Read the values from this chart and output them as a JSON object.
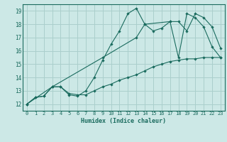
{
  "title": "",
  "xlabel": "Humidex (Indice chaleur)",
  "xlim": [
    -0.5,
    23.5
  ],
  "ylim": [
    11.5,
    19.5
  ],
  "xticks": [
    0,
    1,
    2,
    3,
    4,
    5,
    6,
    7,
    8,
    9,
    10,
    11,
    12,
    13,
    14,
    15,
    16,
    17,
    18,
    19,
    20,
    21,
    22,
    23
  ],
  "yticks": [
    12,
    13,
    14,
    15,
    16,
    17,
    18,
    19
  ],
  "bg_color": "#cce8e6",
  "line_color": "#1a6b5e",
  "grid_color": "#aacfcc",
  "line1_x": [
    0,
    1,
    2,
    3,
    4,
    5,
    6,
    7,
    8,
    9,
    10,
    11,
    12,
    13,
    14,
    15,
    16,
    17,
    18,
    19,
    20,
    21,
    22,
    23
  ],
  "line1_y": [
    12.0,
    12.5,
    12.6,
    13.3,
    13.3,
    12.8,
    12.7,
    12.7,
    13.0,
    13.3,
    13.5,
    13.8,
    14.0,
    14.2,
    14.5,
    14.8,
    15.0,
    15.2,
    15.3,
    15.4,
    15.4,
    15.5,
    15.5,
    15.5
  ],
  "line2_x": [
    0,
    1,
    2,
    3,
    4,
    5,
    6,
    7,
    8,
    9,
    10,
    11,
    12,
    13,
    14,
    15,
    16,
    17,
    18,
    19,
    20,
    21,
    22,
    23
  ],
  "line2_y": [
    12.0,
    12.5,
    12.6,
    13.3,
    13.3,
    12.7,
    12.6,
    13.0,
    14.0,
    15.3,
    16.5,
    17.5,
    18.8,
    19.2,
    18.0,
    17.5,
    17.7,
    18.2,
    18.2,
    17.5,
    18.8,
    18.5,
    17.8,
    16.2
  ],
  "line3_x": [
    0,
    3,
    9,
    13,
    14,
    17,
    18,
    19,
    20,
    21,
    22,
    23
  ],
  "line3_y": [
    12.0,
    13.3,
    15.5,
    17.0,
    18.0,
    18.2,
    15.5,
    18.8,
    18.5,
    17.8,
    16.3,
    15.5
  ]
}
